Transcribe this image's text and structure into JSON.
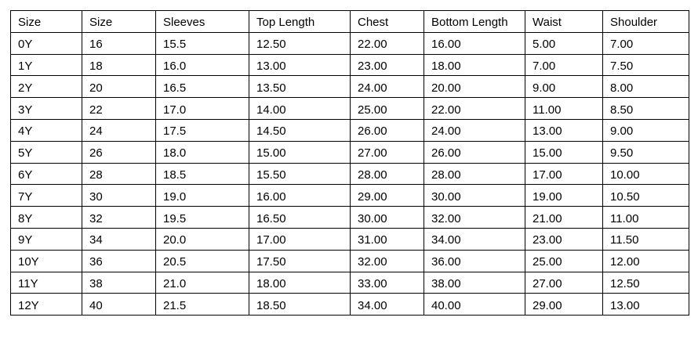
{
  "table": {
    "headers": [
      "Size",
      "Size",
      "Sleeves",
      "Top Length",
      "Chest",
      "Bottom Length",
      "Waist",
      "Shoulder"
    ],
    "rows": [
      [
        "0Y",
        "16",
        "15.5",
        "12.50",
        "22.00",
        "16.00",
        "5.00",
        "7.00"
      ],
      [
        "1Y",
        "18",
        "16.0",
        "13.00",
        "23.00",
        "18.00",
        "7.00",
        "7.50"
      ],
      [
        "2Y",
        "20",
        "16.5",
        "13.50",
        "24.00",
        "20.00",
        "9.00",
        "8.00"
      ],
      [
        "3Y",
        "22",
        "17.0",
        "14.00",
        "25.00",
        "22.00",
        "11.00",
        "8.50"
      ],
      [
        "4Y",
        "24",
        "17.5",
        "14.50",
        "26.00",
        "24.00",
        "13.00",
        "9.00"
      ],
      [
        "5Y",
        "26",
        "18.0",
        "15.00",
        "27.00",
        "26.00",
        "15.00",
        "9.50"
      ],
      [
        "6Y",
        "28",
        "18.5",
        "15.50",
        "28.00",
        "28.00",
        "17.00",
        "10.00"
      ],
      [
        "7Y",
        "30",
        "19.0",
        "16.00",
        "29.00",
        "30.00",
        "19.00",
        "10.50"
      ],
      [
        "8Y",
        "32",
        "19.5",
        "16.50",
        "30.00",
        "32.00",
        "21.00",
        "11.00"
      ],
      [
        "9Y",
        "34",
        "20.0",
        "17.00",
        "31.00",
        "34.00",
        "23.00",
        "11.50"
      ],
      [
        "10Y",
        "36",
        "20.5",
        "17.50",
        "32.00",
        "36.00",
        "25.00",
        "12.00"
      ],
      [
        "11Y",
        "38",
        "21.0",
        "18.00",
        "33.00",
        "38.00",
        "27.00",
        "12.50"
      ],
      [
        "12Y",
        "40",
        "21.5",
        "18.50",
        "34.00",
        "40.00",
        "29.00",
        "13.00"
      ]
    ]
  }
}
